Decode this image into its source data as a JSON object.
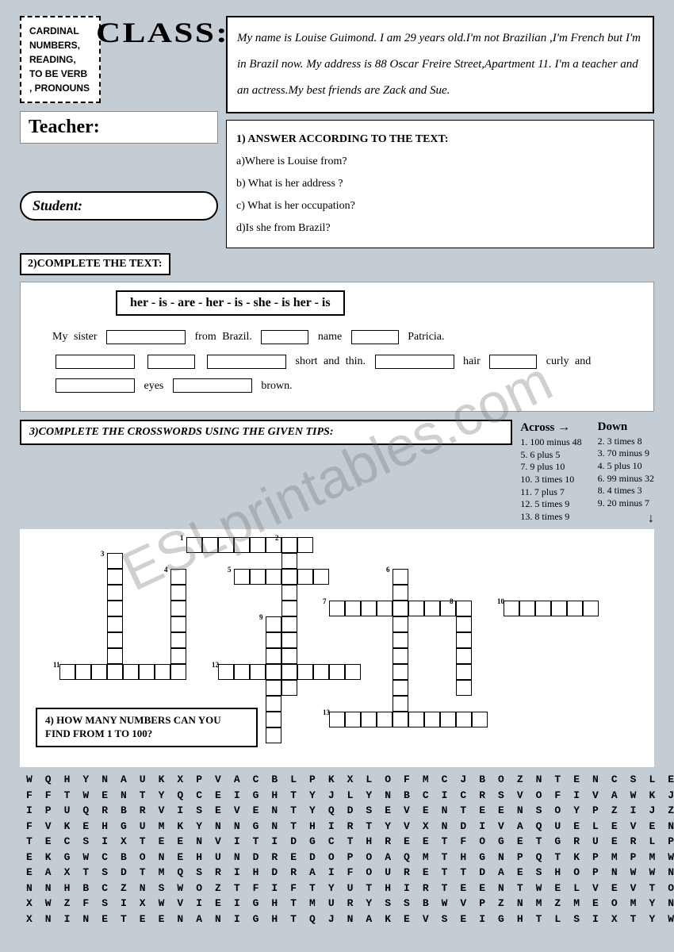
{
  "topic": "CARDINAL NUMBERS, READING, TO BE VERB , PRONOUNS",
  "labels": {
    "class": "CLASS:",
    "teacher": "Teacher:",
    "student": "Student:"
  },
  "reading": "My name is Louise Guimond. I am 29 years old.I'm not Brazilian ,I'm French but I'm in Brazil now. My address is 88 Oscar Freire Street,Apartment 11. I'm a teacher and an actress.My best friends are Zack and Sue.",
  "q1": {
    "title": "1) ANSWER ACCORDING TO THE TEXT:",
    "a": "a)Where is Louise from?",
    "b": "b) What is her address ?",
    "c": "c) What is her occupation?",
    "d": "d)Is she from Brazil?"
  },
  "q2": {
    "label": "2)COMPLETE THE TEXT:",
    "bank": "her - is - are - her - is - she - is her - is"
  },
  "q3": {
    "label": "3)COMPLETE THE CROSSWORDS USING THE GIVEN TIPS:",
    "across_title": "Across",
    "down_title": "Down",
    "across": [
      "1. 100 minus 48",
      "5. 6 plus 5",
      "7. 9 plus 10",
      "10. 3 times 10",
      "11. 7 plus 7",
      "12. 5 times 9",
      "13. 8 times 9"
    ],
    "down": [
      "2. 3 times 8",
      "3. 70 minus 9",
      "4. 5 plus 10",
      "6. 99 minus 32",
      "8. 4 times 3",
      "9. 20 minus 7"
    ]
  },
  "q4": {
    "label": "4) HOW MANY NUMBERS CAN YOU FIND FROM 1 TO 100?"
  },
  "wordsearch": [
    "WQHYNAUKXPVACBLPKXLOFMCJBOZNTENCSLEJ",
    "FFTWENTYQCEIGHTYJLYNBCICRSVOFIVAWKJZ",
    "IPUQRBRVISEVENTYQDSEVENTEENSOYPZIJZN",
    "FVKEHGUMKYNNGNTHIRTYVXNDIVAQUELEVENN",
    "TECSIXTEENVITIDGCTHREETFOGETGRUERLPQ",
    "EKGWCBONEHUNDREDOPOAQMTHGNPQTKPMPMWW",
    "EAXTSDTMQSRIHDRAIFOURETTDAESHOPNWWNN",
    "NNHBCZNSWOZTFIFTYUTHIRTEENTWELVEVTOG",
    "XWZFSIXWVIEIGHTMURYSSBWVPZNMZMEOMYN",
    "XNINETEENANIGHTQJNAKEVSEIGHTLSIXTYWU"
  ],
  "watermark": "ESLprintables.com"
}
